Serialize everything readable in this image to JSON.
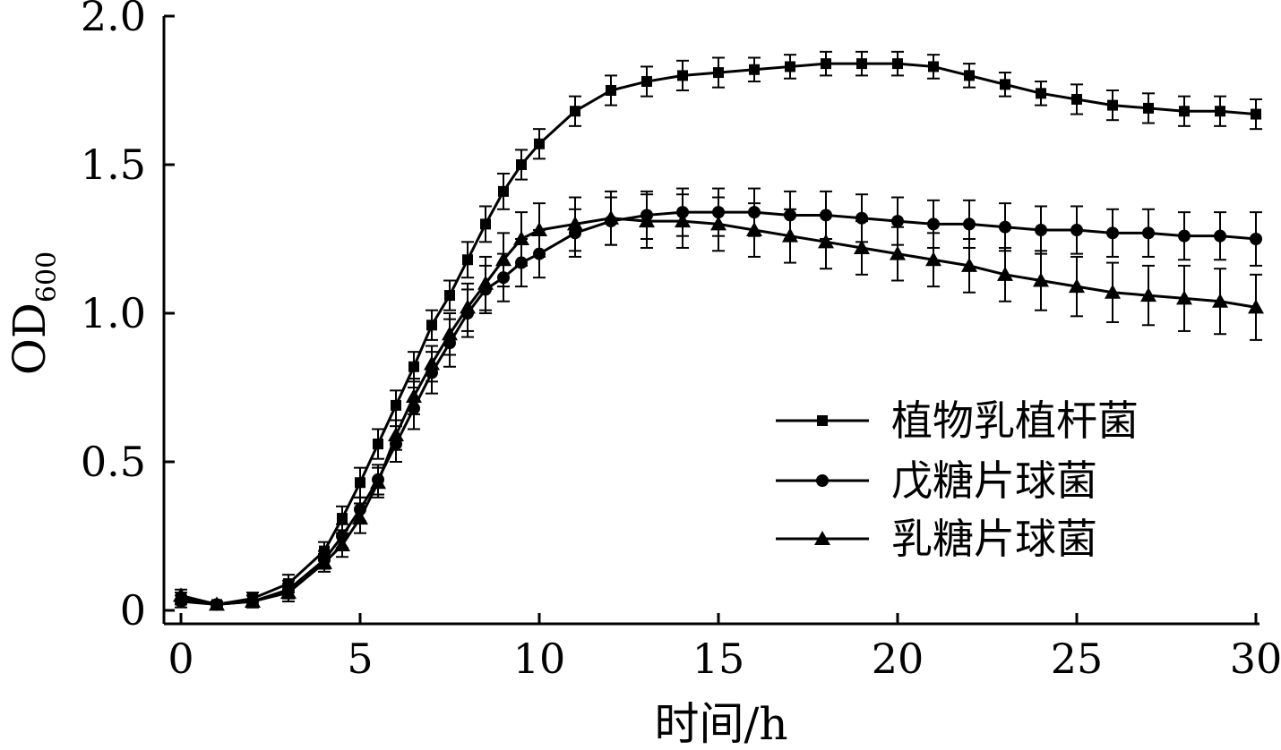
{
  "chart_data": {
    "type": "line",
    "xlabel": "时间/h",
    "ylabel_main": "OD",
    "ylabel_sub": "600",
    "xlim": [
      0,
      30
    ],
    "ylim": [
      0,
      2.0
    ],
    "x_ticks": [
      0,
      5,
      10,
      15,
      20,
      25,
      30
    ],
    "x_tick_labels": [
      "0",
      "5",
      "10",
      "15",
      "20",
      "25",
      "30"
    ],
    "y_ticks": [
      0,
      0.5,
      1.0,
      1.5,
      2.0
    ],
    "y_tick_labels": [
      "0",
      "0.5",
      "1.0",
      "1.5",
      "2.0"
    ],
    "grid": false,
    "legend_position": "center-right",
    "series": [
      {
        "name": "植物乳植杆菌",
        "marker": "square",
        "x": [
          0,
          1,
          2,
          3,
          4,
          4.5,
          5,
          5.5,
          6,
          6.5,
          7,
          7.5,
          8,
          8.5,
          9,
          9.5,
          10,
          11,
          12,
          13,
          14,
          15,
          16,
          17,
          18,
          19,
          20,
          21,
          22,
          23,
          24,
          25,
          26,
          27,
          28,
          29,
          30
        ],
        "values": [
          0.04,
          0.02,
          0.04,
          0.09,
          0.2,
          0.31,
          0.43,
          0.56,
          0.69,
          0.82,
          0.96,
          1.06,
          1.18,
          1.3,
          1.41,
          1.5,
          1.57,
          1.68,
          1.75,
          1.78,
          1.8,
          1.81,
          1.82,
          1.83,
          1.84,
          1.84,
          1.84,
          1.83,
          1.8,
          1.77,
          1.74,
          1.72,
          1.7,
          1.69,
          1.68,
          1.68,
          1.67
        ],
        "error": [
          0.02,
          0.01,
          0.02,
          0.03,
          0.03,
          0.04,
          0.05,
          0.05,
          0.05,
          0.05,
          0.05,
          0.05,
          0.06,
          0.06,
          0.06,
          0.05,
          0.05,
          0.05,
          0.05,
          0.05,
          0.05,
          0.05,
          0.04,
          0.04,
          0.04,
          0.04,
          0.04,
          0.04,
          0.04,
          0.04,
          0.04,
          0.05,
          0.05,
          0.05,
          0.05,
          0.05,
          0.05
        ]
      },
      {
        "name": "戊糖片球菌",
        "marker": "circle",
        "x": [
          0,
          1,
          2,
          3,
          4,
          4.5,
          5,
          5.5,
          6,
          6.5,
          7,
          7.5,
          8,
          8.5,
          9,
          9.5,
          10,
          11,
          12,
          13,
          14,
          15,
          16,
          17,
          18,
          19,
          20,
          21,
          22,
          23,
          24,
          25,
          26,
          27,
          28,
          29,
          30
        ],
        "values": [
          0.03,
          0.02,
          0.03,
          0.07,
          0.17,
          0.25,
          0.34,
          0.44,
          0.56,
          0.68,
          0.8,
          0.9,
          1.0,
          1.08,
          1.12,
          1.17,
          1.2,
          1.27,
          1.31,
          1.33,
          1.34,
          1.34,
          1.34,
          1.33,
          1.33,
          1.32,
          1.31,
          1.3,
          1.3,
          1.29,
          1.28,
          1.28,
          1.27,
          1.27,
          1.26,
          1.26,
          1.25
        ],
        "error": [
          0.02,
          0.01,
          0.02,
          0.03,
          0.03,
          0.04,
          0.04,
          0.05,
          0.06,
          0.07,
          0.07,
          0.08,
          0.08,
          0.08,
          0.08,
          0.08,
          0.08,
          0.08,
          0.08,
          0.08,
          0.08,
          0.08,
          0.08,
          0.08,
          0.08,
          0.08,
          0.08,
          0.08,
          0.08,
          0.08,
          0.08,
          0.08,
          0.08,
          0.08,
          0.08,
          0.08,
          0.09
        ]
      },
      {
        "name": "乳糖片球菌",
        "marker": "triangle",
        "x": [
          0,
          1,
          2,
          3,
          4,
          4.5,
          5,
          5.5,
          6,
          6.5,
          7,
          7.5,
          8,
          8.5,
          9,
          9.5,
          10,
          11,
          12,
          13,
          14,
          15,
          16,
          17,
          18,
          19,
          20,
          21,
          22,
          23,
          24,
          25,
          26,
          27,
          28,
          29,
          30
        ],
        "values": [
          0.05,
          0.02,
          0.03,
          0.06,
          0.16,
          0.22,
          0.31,
          0.43,
          0.59,
          0.72,
          0.83,
          0.93,
          1.02,
          1.1,
          1.18,
          1.25,
          1.28,
          1.3,
          1.32,
          1.31,
          1.31,
          1.3,
          1.28,
          1.26,
          1.24,
          1.22,
          1.2,
          1.18,
          1.16,
          1.13,
          1.11,
          1.09,
          1.07,
          1.06,
          1.05,
          1.04,
          1.02
        ],
        "error": [
          0.02,
          0.01,
          0.02,
          0.03,
          0.03,
          0.04,
          0.05,
          0.05,
          0.05,
          0.06,
          0.06,
          0.07,
          0.08,
          0.09,
          0.09,
          0.09,
          0.09,
          0.09,
          0.09,
          0.09,
          0.09,
          0.09,
          0.09,
          0.09,
          0.09,
          0.09,
          0.09,
          0.09,
          0.09,
          0.09,
          0.1,
          0.1,
          0.1,
          0.1,
          0.11,
          0.11,
          0.11
        ]
      }
    ]
  }
}
